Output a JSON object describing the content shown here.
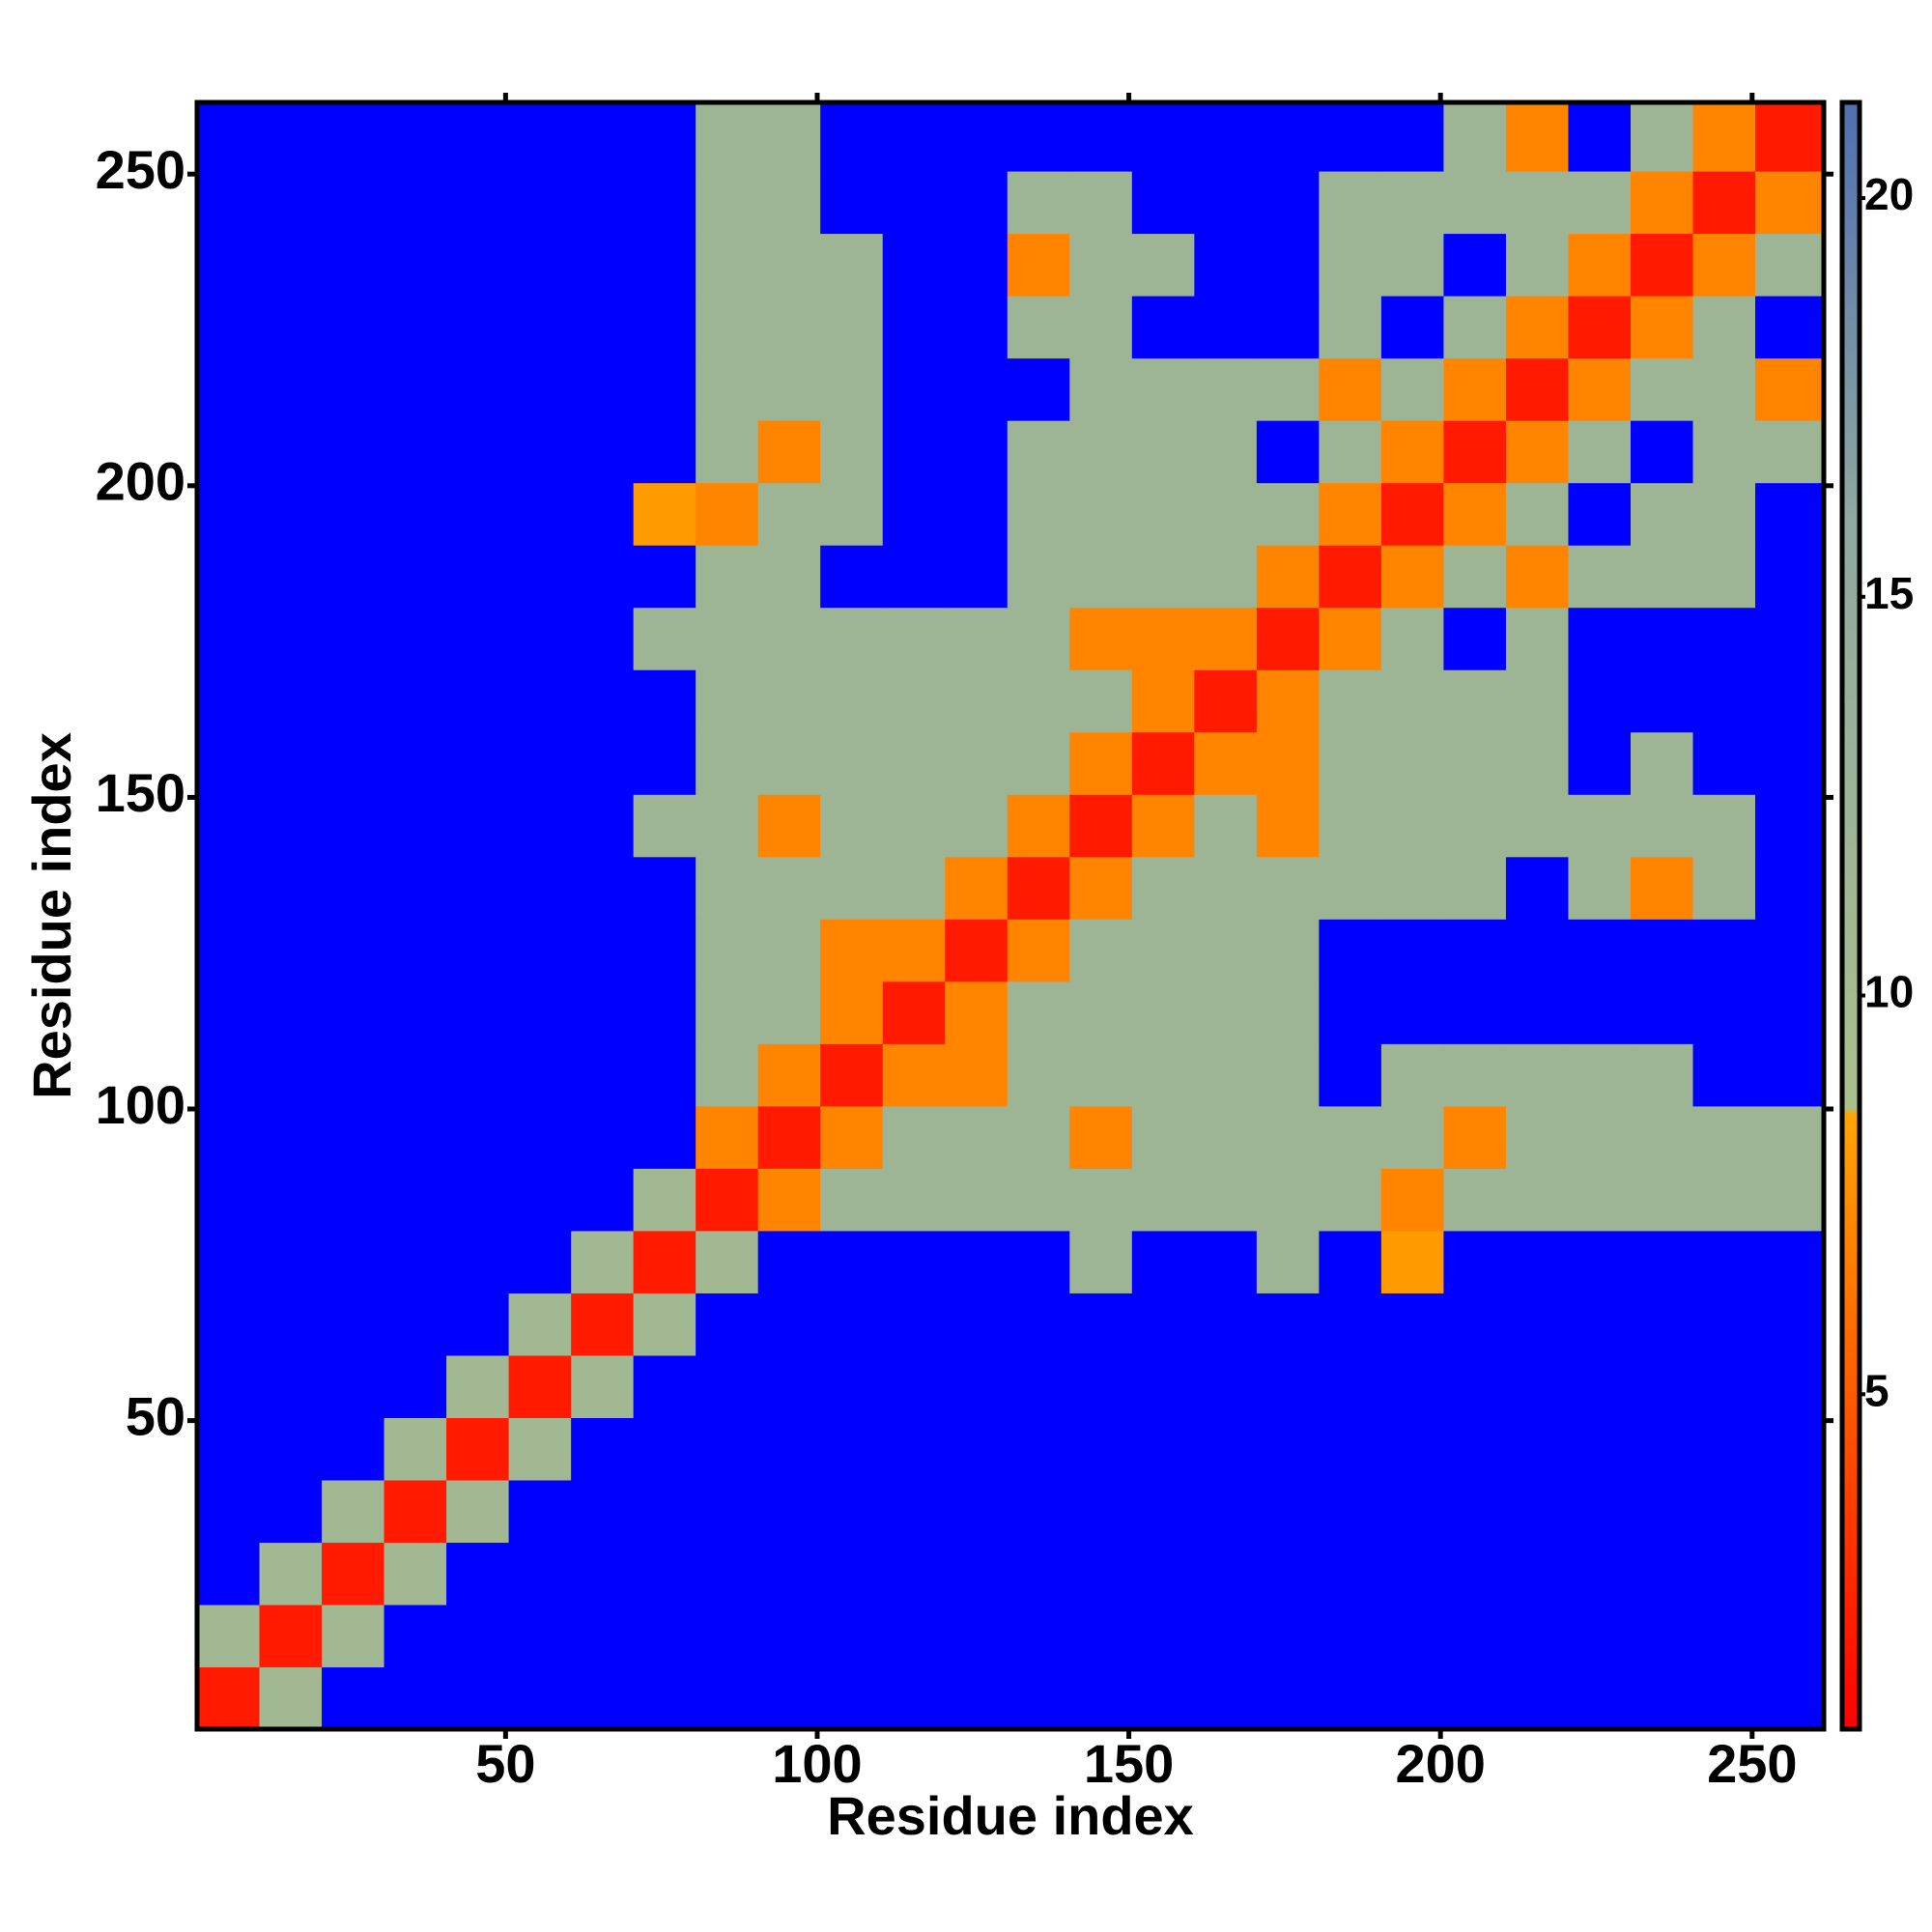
{
  "chart_data": {
    "type": "heatmap",
    "x_label": "Residue index",
    "y_label": "Residue index",
    "x": [
      0.5,
      10.5,
      20.5,
      30.5,
      40.5,
      50.5,
      60.5,
      70.5,
      80.5,
      90.5,
      100.5,
      110.5,
      120.5,
      130.5,
      140.5,
      150.5,
      160.5,
      170.5,
      180.5,
      190.5,
      200.5,
      210.5,
      220.5,
      230.5,
      240.5,
      250.5,
      261.5
    ],
    "y": [
      0.5,
      10.5,
      20.5,
      30.5,
      40.5,
      50.5,
      60.5,
      70.5,
      80.5,
      90.5,
      100.5,
      110.5,
      120.5,
      130.5,
      140.5,
      150.5,
      160.5,
      170.5,
      180.5,
      190.5,
      200.5,
      210.5,
      220.5,
      230.5,
      240.5,
      250.5,
      261.5
    ],
    "xlim": [
      0.5,
      261.5
    ],
    "ylim": [
      0.5,
      261.5
    ],
    "xticks": [
      50,
      100,
      150,
      200,
      250
    ],
    "yticks": [
      50,
      100,
      150,
      200,
      250
    ],
    "zlim": [
      0.8,
      21.2
    ],
    "zticks": [
      5,
      10,
      15,
      20
    ],
    "colorscale": [
      [
        0.8,
        "#ff0000"
      ],
      [
        8.5,
        "#ffa500"
      ],
      [
        8.6,
        "#a9c08c"
      ],
      [
        16,
        "#8fa8a0"
      ],
      [
        21.2,
        "#4f6fb0"
      ]
    ],
    "over_color": "#0000ff",
    "z": [
      [
        2,
        11,
        22,
        22,
        22,
        22,
        22,
        22,
        22,
        22,
        22,
        22,
        22,
        22,
        22,
        22,
        22,
        22,
        22,
        22,
        22,
        22,
        22,
        22,
        22,
        22
      ],
      [
        11,
        2,
        11,
        22,
        22,
        22,
        22,
        22,
        22,
        22,
        22,
        22,
        22,
        22,
        22,
        22,
        22,
        22,
        22,
        22,
        22,
        22,
        22,
        22,
        22,
        22
      ],
      [
        22,
        11,
        2,
        11,
        22,
        22,
        22,
        22,
        22,
        22,
        22,
        22,
        22,
        22,
        22,
        22,
        22,
        22,
        22,
        22,
        22,
        22,
        22,
        22,
        22,
        22
      ],
      [
        22,
        22,
        11,
        2,
        11,
        22,
        22,
        22,
        22,
        22,
        22,
        22,
        22,
        22,
        22,
        22,
        22,
        22,
        22,
        22,
        22,
        22,
        22,
        22,
        22,
        22
      ],
      [
        22,
        22,
        22,
        11,
        2,
        11,
        22,
        22,
        22,
        22,
        22,
        22,
        22,
        22,
        22,
        22,
        22,
        22,
        22,
        22,
        22,
        22,
        22,
        22,
        22,
        22
      ],
      [
        22,
        22,
        22,
        22,
        11,
        2,
        11,
        22,
        22,
        22,
        22,
        22,
        22,
        22,
        22,
        22,
        22,
        22,
        22,
        22,
        22,
        22,
        22,
        22,
        22,
        22
      ],
      [
        22,
        22,
        22,
        22,
        22,
        11,
        2,
        11,
        22,
        22,
        22,
        22,
        22,
        22,
        22,
        22,
        22,
        22,
        22,
        22,
        22,
        22,
        22,
        22,
        22,
        22
      ],
      [
        22,
        22,
        22,
        22,
        22,
        22,
        11,
        2,
        11,
        22,
        22,
        22,
        22,
        22,
        12,
        22,
        22,
        12,
        22,
        8,
        22,
        22,
        22,
        22,
        22,
        22
      ],
      [
        22,
        22,
        22,
        22,
        22,
        22,
        22,
        11,
        2,
        7,
        12,
        12,
        12,
        12,
        12,
        12,
        12,
        12,
        12,
        7,
        12,
        12,
        12,
        12,
        12,
        12
      ],
      [
        22,
        22,
        22,
        22,
        22,
        22,
        22,
        22,
        7,
        2,
        7,
        12,
        12,
        12,
        7,
        12,
        12,
        12,
        12,
        12,
        7,
        12,
        12,
        12,
        12,
        12
      ],
      [
        22,
        22,
        22,
        22,
        22,
        22,
        22,
        22,
        12,
        7,
        2,
        7,
        7,
        12,
        12,
        12,
        12,
        12,
        22,
        12,
        12,
        12,
        12,
        12,
        22,
        22
      ],
      [
        22,
        22,
        22,
        22,
        22,
        22,
        22,
        22,
        12,
        12,
        7,
        2,
        7,
        12,
        12,
        12,
        12,
        12,
        22,
        22,
        22,
        22,
        22,
        22,
        22,
        22
      ],
      [
        22,
        22,
        22,
        22,
        22,
        22,
        22,
        22,
        12,
        12,
        7,
        7,
        2,
        7,
        12,
        12,
        12,
        12,
        22,
        22,
        22,
        22,
        22,
        22,
        22,
        22
      ],
      [
        22,
        22,
        22,
        22,
        22,
        22,
        22,
        22,
        12,
        12,
        12,
        12,
        7,
        2,
        7,
        12,
        12,
        12,
        12,
        12,
        12,
        22,
        12,
        7,
        12,
        22
      ],
      [
        22,
        22,
        22,
        22,
        22,
        22,
        22,
        12,
        12,
        7,
        12,
        12,
        12,
        7,
        2,
        7,
        12,
        7,
        12,
        12,
        12,
        12,
        12,
        12,
        12,
        22
      ],
      [
        22,
        22,
        22,
        22,
        22,
        22,
        22,
        22,
        12,
        12,
        12,
        12,
        12,
        12,
        7,
        2,
        7,
        7,
        12,
        12,
        12,
        12,
        22,
        12,
        22,
        22
      ],
      [
        22,
        22,
        22,
        22,
        22,
        22,
        22,
        22,
        12,
        12,
        12,
        12,
        12,
        12,
        12,
        7,
        2,
        7,
        12,
        12,
        12,
        12,
        22,
        22,
        22,
        22
      ],
      [
        22,
        22,
        22,
        22,
        22,
        22,
        22,
        12,
        12,
        12,
        12,
        12,
        12,
        12,
        7,
        7,
        7,
        2,
        7,
        12,
        22,
        12,
        22,
        22,
        22,
        22
      ],
      [
        22,
        22,
        22,
        22,
        22,
        22,
        22,
        22,
        12,
        12,
        22,
        22,
        22,
        12,
        12,
        12,
        12,
        7,
        2,
        7,
        12,
        7,
        12,
        12,
        12,
        22
      ],
      [
        22,
        22,
        22,
        22,
        22,
        22,
        22,
        8,
        7,
        12,
        12,
        22,
        22,
        12,
        12,
        12,
        12,
        12,
        7,
        2,
        7,
        12,
        22,
        12,
        12,
        22
      ],
      [
        22,
        22,
        22,
        22,
        22,
        22,
        22,
        22,
        12,
        7,
        12,
        22,
        22,
        12,
        12,
        12,
        12,
        22,
        12,
        7,
        2,
        7,
        12,
        22,
        12,
        12
      ],
      [
        22,
        22,
        22,
        22,
        22,
        22,
        22,
        22,
        12,
        12,
        12,
        22,
        22,
        22,
        12,
        12,
        12,
        12,
        7,
        12,
        7,
        2,
        7,
        12,
        12,
        7
      ],
      [
        22,
        22,
        22,
        22,
        22,
        22,
        22,
        22,
        12,
        12,
        12,
        22,
        22,
        12,
        12,
        22,
        22,
        22,
        12,
        22,
        12,
        7,
        2,
        7,
        12,
        22
      ],
      [
        22,
        22,
        22,
        22,
        22,
        22,
        22,
        22,
        12,
        12,
        12,
        22,
        22,
        7,
        12,
        12,
        22,
        22,
        12,
        12,
        22,
        12,
        7,
        2,
        7,
        12
      ],
      [
        22,
        22,
        22,
        22,
        22,
        22,
        22,
        22,
        12,
        12,
        22,
        22,
        22,
        12,
        12,
        22,
        22,
        22,
        12,
        12,
        12,
        12,
        12,
        7,
        2,
        7
      ],
      [
        22,
        22,
        22,
        22,
        22,
        22,
        22,
        22,
        12,
        12,
        22,
        22,
        22,
        22,
        22,
        22,
        22,
        22,
        22,
        22,
        12,
        7,
        22,
        12,
        7,
        2
      ]
    ]
  }
}
